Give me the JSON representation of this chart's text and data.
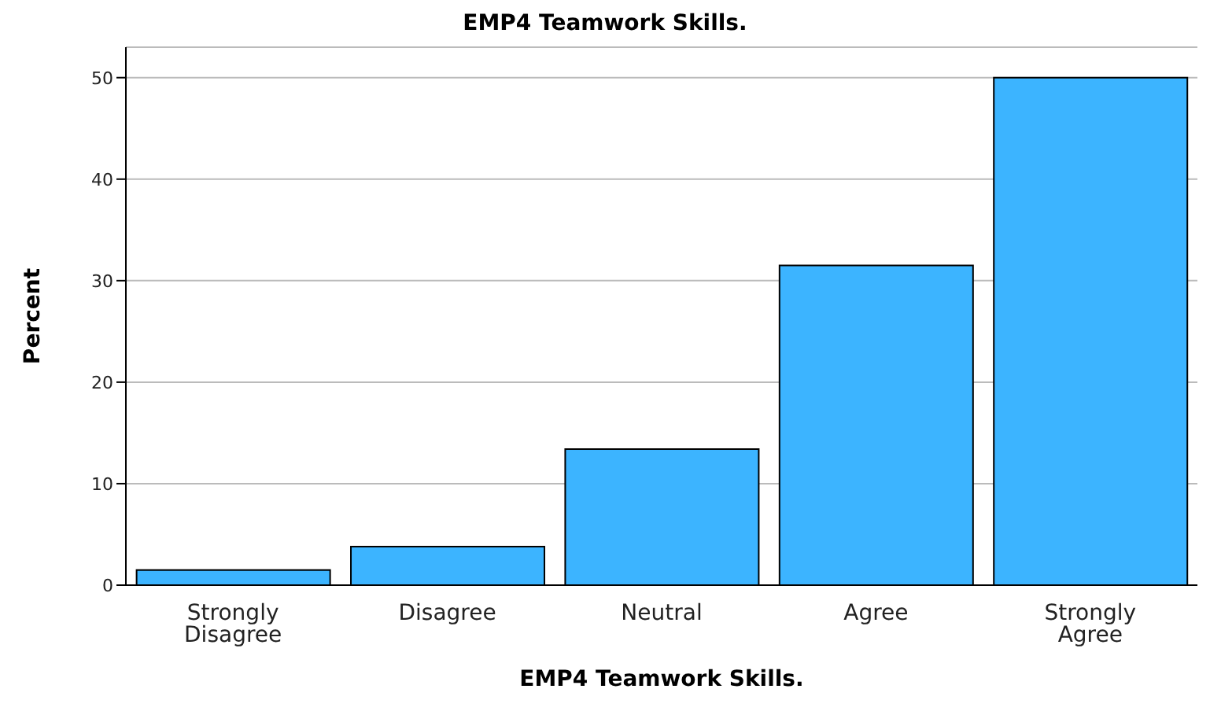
{
  "chart_data": {
    "type": "bar",
    "title": "EMP4 Teamwork Skills.",
    "xlabel": "EMP4 Teamwork Skills.",
    "ylabel": "Percent",
    "categories": [
      "Strongly Disagree",
      "Disagree",
      "Neutral",
      "Agree",
      "Strongly Agree"
    ],
    "values": [
      1.5,
      3.8,
      13.4,
      31.5,
      50.0
    ],
    "color": "#3cb4ff",
    "ylim": [
      0,
      53
    ],
    "yticks": [
      0,
      10,
      20,
      30,
      40,
      50
    ],
    "grid": "y"
  }
}
